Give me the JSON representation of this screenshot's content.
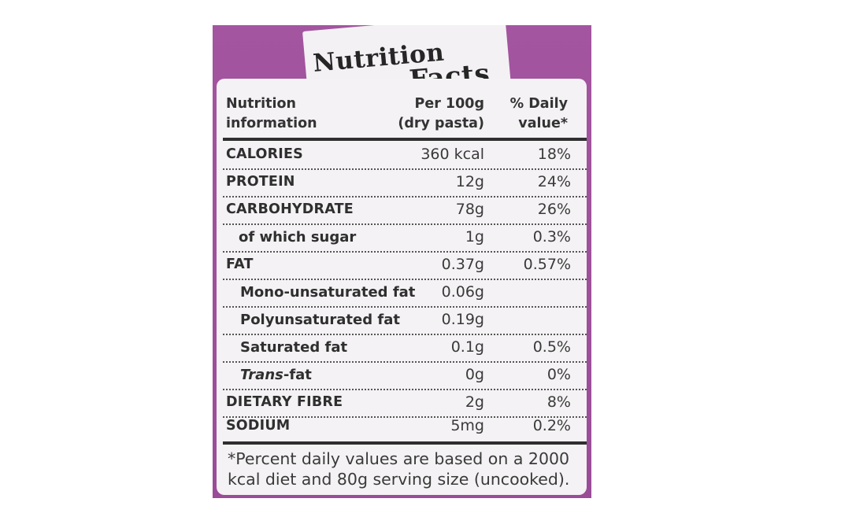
{
  "title_line1": "Nutrition",
  "title_line2": "Facts",
  "headers": {
    "col1": "Nutrition\ninformation",
    "col2": "Per 100g\n(dry pasta)",
    "col3": "% Daily\nvalue*"
  },
  "rows": [
    {
      "label": "CALORIES",
      "per100": "360 kcal",
      "dv": "18%"
    },
    {
      "label": "PROTEIN",
      "per100": "12g",
      "dv": "24%"
    },
    {
      "label": "CARBOHYDRATE",
      "per100": "78g",
      "dv": "26%"
    },
    {
      "label": "of which sugar",
      "per100": "1g",
      "dv": "0.3%"
    },
    {
      "label": "FAT",
      "per100": "0.37g",
      "dv": "0.57%"
    },
    {
      "label": "Mono-unsaturated fat",
      "per100": "0.06g",
      "dv": ""
    },
    {
      "label": "Polyunsaturated fat",
      "per100": "0.19g",
      "dv": ""
    },
    {
      "label": "Saturated fat",
      "per100": "0.1g",
      "dv": "0.5%"
    },
    {
      "label_italic": "Trans",
      "label_rest": "-fat",
      "per100": "0g",
      "dv": "0%"
    },
    {
      "label": "DIETARY FIBRE",
      "per100": "2g",
      "dv": "8%"
    },
    {
      "label": "SODIUM",
      "per100": "5mg",
      "dv": "0.2%"
    }
  ],
  "footnote": "*Percent daily values are based on a 2000\nkcal diet and 80g serving size (uncooked).",
  "colors": {
    "package_purple": "#9f519c",
    "panel": "#f4f2f4",
    "text": "#2f2f2f"
  }
}
